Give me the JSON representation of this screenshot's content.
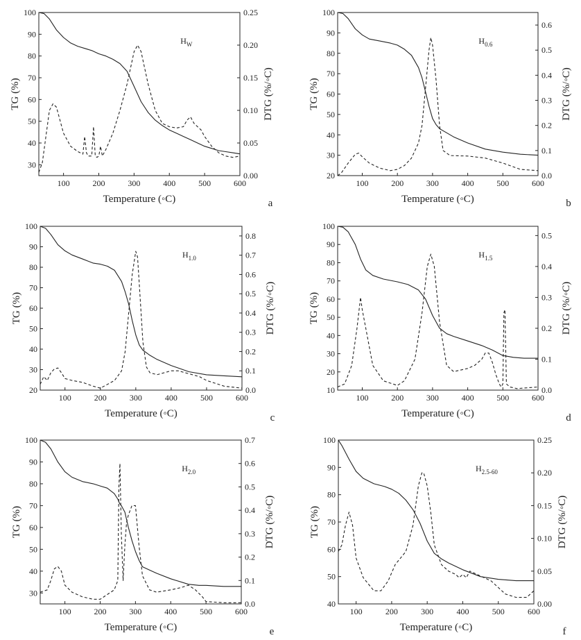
{
  "chart_data": [
    {
      "type": "line",
      "panel_letter": "a",
      "sample_label": {
        "main": "H",
        "sub": "W"
      },
      "xlabel": "Temperature (◦C)",
      "ylabel_left": "TG (%)",
      "ylabel_right": "DTG (%/◦C)",
      "xlim": [
        30,
        600
      ],
      "xticks": [
        100,
        200,
        300,
        400,
        500,
        600
      ],
      "ylim_left": [
        25,
        100
      ],
      "yticks_left": [
        30,
        40,
        50,
        60,
        70,
        80,
        90,
        100
      ],
      "ylim_right": [
        0,
        0.25
      ],
      "yticks_right": [
        "0.00",
        "0.05",
        "0.10",
        "0.15",
        "0.20",
        "0.25"
      ],
      "series": [
        {
          "axis": "left",
          "style": "solid",
          "x": [
            30,
            45,
            60,
            80,
            100,
            120,
            140,
            160,
            180,
            200,
            220,
            240,
            260,
            280,
            300,
            320,
            340,
            360,
            380,
            400,
            420,
            440,
            460,
            480,
            500,
            520,
            540,
            560,
            580,
            600
          ],
          "y": [
            100,
            99.5,
            97,
            92,
            88.5,
            86,
            84.5,
            83.5,
            82.5,
            81,
            80,
            78.5,
            76.5,
            73,
            66,
            59,
            54,
            50.5,
            48,
            46,
            44.5,
            43,
            41.5,
            40,
            38.5,
            37.5,
            36.5,
            36,
            35.5,
            35
          ]
        },
        {
          "axis": "right",
          "style": "dashed",
          "x": [
            30,
            40,
            50,
            60,
            70,
            80,
            90,
            100,
            120,
            140,
            155,
            160,
            165,
            170,
            180,
            185,
            190,
            195,
            200,
            205,
            210,
            215,
            220,
            240,
            260,
            280,
            300,
            310,
            320,
            340,
            360,
            380,
            400,
            420,
            440,
            450,
            460,
            470,
            480,
            490,
            500,
            520,
            540,
            560,
            580,
            600
          ],
          "y": [
            0.005,
            0.02,
            0.06,
            0.1,
            0.11,
            0.105,
            0.085,
            0.065,
            0.045,
            0.037,
            0.033,
            0.06,
            0.035,
            0.03,
            0.03,
            0.075,
            0.03,
            0.028,
            0.03,
            0.045,
            0.03,
            0.035,
            0.04,
            0.065,
            0.1,
            0.14,
            0.19,
            0.2,
            0.19,
            0.14,
            0.1,
            0.08,
            0.075,
            0.073,
            0.075,
            0.085,
            0.09,
            0.08,
            0.075,
            0.07,
            0.06,
            0.045,
            0.035,
            0.03,
            0.028,
            0.03
          ]
        }
      ]
    },
    {
      "type": "line",
      "panel_letter": "b",
      "sample_label": {
        "main": "H",
        "sub": "0.6"
      },
      "xlabel": "Temperature (◦C)",
      "ylabel_left": "TG (%)",
      "ylabel_right": "DTG (%/◦C)",
      "xlim": [
        30,
        600
      ],
      "xticks": [
        100,
        200,
        300,
        400,
        500,
        600
      ],
      "ylim_left": [
        20,
        100
      ],
      "yticks_left": [
        20,
        30,
        40,
        50,
        60,
        70,
        80,
        90,
        100
      ],
      "ylim_right": [
        0,
        0.65
      ],
      "yticks_right": [
        "0.0",
        "0.1",
        "0.2",
        "0.3",
        "0.4",
        "0.5",
        "0.6"
      ],
      "series": [
        {
          "axis": "left",
          "style": "solid",
          "x": [
            30,
            45,
            60,
            80,
            100,
            120,
            150,
            180,
            200,
            220,
            240,
            260,
            270,
            280,
            290,
            300,
            310,
            320,
            340,
            360,
            400,
            450,
            500,
            550,
            600
          ],
          "y": [
            100,
            99.5,
            97,
            92,
            89,
            87,
            86,
            85,
            84,
            82,
            79,
            73,
            68,
            61,
            54,
            48,
            45,
            43,
            41,
            39,
            36,
            33,
            31.5,
            30.5,
            30
          ]
        },
        {
          "axis": "right",
          "style": "dashed",
          "x": [
            30,
            40,
            60,
            80,
            90,
            100,
            120,
            150,
            180,
            200,
            220,
            240,
            260,
            270,
            280,
            290,
            295,
            300,
            310,
            320,
            330,
            350,
            400,
            450,
            500,
            550,
            600
          ],
          "y": [
            0,
            0.01,
            0.05,
            0.085,
            0.09,
            0.075,
            0.05,
            0.03,
            0.02,
            0.025,
            0.04,
            0.07,
            0.13,
            0.2,
            0.35,
            0.5,
            0.55,
            0.52,
            0.38,
            0.2,
            0.1,
            0.08,
            0.078,
            0.07,
            0.05,
            0.025,
            0.02
          ]
        }
      ]
    },
    {
      "type": "line",
      "panel_letter": "c",
      "sample_label": {
        "main": "H",
        "sub": "1.0"
      },
      "xlabel": "Temperature (◦C)",
      "ylabel_left": "TG (%)",
      "ylabel_right": "DTG (%/◦C)",
      "xlim": [
        30,
        600
      ],
      "xticks": [
        100,
        200,
        300,
        400,
        500,
        600
      ],
      "ylim_left": [
        20,
        100
      ],
      "yticks_left": [
        20,
        30,
        40,
        50,
        60,
        70,
        80,
        90,
        100
      ],
      "ylim_right": [
        0,
        0.85
      ],
      "yticks_right": [
        "0.0",
        "0.1",
        "0.2",
        "0.3",
        "0.4",
        "0.5",
        "0.6",
        "0.7",
        "0.8"
      ],
      "series": [
        {
          "axis": "left",
          "style": "solid",
          "x": [
            30,
            45,
            60,
            80,
            100,
            120,
            150,
            180,
            200,
            220,
            240,
            260,
            270,
            280,
            290,
            300,
            310,
            320,
            340,
            360,
            400,
            450,
            500,
            550,
            600
          ],
          "y": [
            100,
            99,
            96,
            91,
            88,
            86,
            84,
            82,
            81.5,
            80.5,
            78.5,
            73,
            68,
            62,
            54,
            47,
            42,
            39.5,
            37,
            35,
            32,
            29,
            27.5,
            27,
            26.5
          ]
        },
        {
          "axis": "right",
          "style": "dashed",
          "x": [
            30,
            40,
            50,
            60,
            70,
            80,
            90,
            100,
            120,
            150,
            180,
            200,
            220,
            240,
            260,
            270,
            280,
            290,
            300,
            305,
            310,
            320,
            330,
            340,
            360,
            380,
            400,
            420,
            440,
            460,
            480,
            500,
            550,
            600
          ],
          "y": [
            0.03,
            0.07,
            0.05,
            0.09,
            0.11,
            0.115,
            0.09,
            0.06,
            0.05,
            0.04,
            0.02,
            0.01,
            0.03,
            0.05,
            0.1,
            0.2,
            0.4,
            0.6,
            0.72,
            0.69,
            0.55,
            0.25,
            0.12,
            0.09,
            0.08,
            0.09,
            0.1,
            0.1,
            0.09,
            0.08,
            0.07,
            0.05,
            0.02,
            0.01
          ]
        }
      ]
    },
    {
      "type": "line",
      "panel_letter": "d",
      "sample_label": {
        "main": "H",
        "sub": "1.5"
      },
      "xlabel": "Temperature (◦C)",
      "ylabel_left": "TG (%)",
      "ylabel_right": "DTG (%/◦C)",
      "xlim": [
        30,
        600
      ],
      "xticks": [
        100,
        200,
        300,
        400,
        500,
        600
      ],
      "ylim_left": [
        10,
        100
      ],
      "yticks_left": [
        10,
        20,
        30,
        40,
        50,
        60,
        70,
        80,
        90,
        100
      ],
      "ylim_right": [
        0,
        0.53
      ],
      "yticks_right": [
        "0.0",
        "0.1",
        "0.2",
        "0.3",
        "0.4",
        "0.5"
      ],
      "series": [
        {
          "axis": "left",
          "style": "solid",
          "x": [
            30,
            45,
            60,
            80,
            95,
            110,
            130,
            160,
            200,
            230,
            260,
            280,
            300,
            320,
            340,
            360,
            400,
            440,
            470,
            500,
            530,
            560,
            600
          ],
          "y": [
            100,
            99.5,
            97,
            90,
            82,
            76,
            73,
            71,
            69.5,
            68,
            65,
            60,
            51,
            44,
            41,
            39.5,
            37,
            34.5,
            32,
            29,
            28,
            27.5,
            27.5
          ]
        },
        {
          "axis": "right",
          "style": "dashed",
          "x": [
            30,
            50,
            70,
            85,
            95,
            100,
            110,
            130,
            160,
            200,
            220,
            250,
            270,
            285,
            295,
            305,
            320,
            340,
            360,
            380,
            400,
            420,
            440,
            450,
            460,
            470,
            480,
            490,
            495,
            500,
            503,
            506,
            510,
            520,
            540,
            600
          ],
          "y": [
            0.01,
            0.02,
            0.08,
            0.2,
            0.3,
            0.26,
            0.2,
            0.08,
            0.03,
            0.015,
            0.03,
            0.1,
            0.25,
            0.4,
            0.44,
            0.4,
            0.22,
            0.08,
            0.06,
            0.065,
            0.07,
            0.08,
            0.1,
            0.12,
            0.12,
            0.09,
            0.05,
            0.02,
            0.01,
            0.02,
            0.25,
            0.26,
            0.02,
            0.01,
            0.005,
            0.01
          ]
        }
      ]
    },
    {
      "type": "line",
      "panel_letter": "e",
      "sample_label": {
        "main": "H",
        "sub": "2.0"
      },
      "xlabel": "Temperature (◦C)",
      "ylabel_left": "TG (%)",
      "ylabel_right": "DTG (%/◦C)",
      "xlim": [
        30,
        600
      ],
      "xticks": [
        100,
        200,
        300,
        400,
        500,
        600
      ],
      "ylim_left": [
        25,
        100
      ],
      "yticks_left": [
        30,
        40,
        50,
        60,
        70,
        80,
        90,
        100
      ],
      "ylim_right": [
        0,
        0.7
      ],
      "yticks_right": [
        "0.0",
        "0.1",
        "0.2",
        "0.3",
        "0.4",
        "0.5",
        "0.6",
        "0.7"
      ],
      "series": [
        {
          "axis": "left",
          "style": "solid",
          "x": [
            30,
            45,
            60,
            80,
            100,
            120,
            150,
            180,
            200,
            220,
            240,
            250,
            255,
            260,
            270,
            280,
            290,
            300,
            310,
            320,
            340,
            360,
            400,
            450,
            480,
            500,
            550,
            600
          ],
          "y": [
            100,
            99,
            96,
            90,
            85.5,
            83,
            81,
            80,
            79,
            78,
            75.5,
            73,
            71,
            70,
            67,
            60,
            54,
            49,
            45,
            42,
            40.5,
            39,
            36.5,
            34,
            33.5,
            33.5,
            33,
            33
          ]
        },
        {
          "axis": "right",
          "style": "dashed",
          "x": [
            30,
            50,
            60,
            70,
            80,
            90,
            100,
            120,
            150,
            180,
            200,
            220,
            240,
            250,
            253,
            256,
            260,
            265,
            270,
            275,
            280,
            290,
            300,
            310,
            320,
            340,
            360,
            400,
            430,
            450,
            470,
            490,
            500,
            550,
            600
          ],
          "y": [
            0.05,
            0.06,
            0.1,
            0.15,
            0.16,
            0.14,
            0.08,
            0.05,
            0.03,
            0.02,
            0.02,
            0.04,
            0.06,
            0.1,
            0.5,
            0.6,
            0.3,
            0.1,
            0.25,
            0.35,
            0.38,
            0.42,
            0.42,
            0.25,
            0.12,
            0.06,
            0.05,
            0.06,
            0.07,
            0.08,
            0.06,
            0.03,
            0.01,
            0.005,
            0.005
          ]
        }
      ]
    },
    {
      "type": "line",
      "panel_letter": "f",
      "sample_label": {
        "main": "H",
        "sub": "2.5-60"
      },
      "xlabel": "Temperature (◦C)",
      "ylabel_left": "TG (%)",
      "ylabel_right": "DTG (%/◦C)",
      "xlim": [
        50,
        600
      ],
      "xticks": [
        100,
        200,
        300,
        400,
        500,
        600
      ],
      "ylim_left": [
        40,
        100
      ],
      "yticks_left": [
        40,
        50,
        60,
        70,
        80,
        90,
        100
      ],
      "ylim_right": [
        0,
        0.25
      ],
      "yticks_right": [
        "0.00",
        "0.05",
        "0.10",
        "0.15",
        "0.20",
        "0.25"
      ],
      "series": [
        {
          "axis": "left",
          "style": "solid",
          "x": [
            50,
            60,
            80,
            100,
            120,
            150,
            180,
            200,
            220,
            240,
            260,
            280,
            300,
            320,
            340,
            360,
            400,
            450,
            500,
            550,
            600
          ],
          "y": [
            100,
            98,
            93,
            88.5,
            86,
            84,
            83,
            82,
            80.5,
            78,
            74.5,
            69.5,
            63,
            58.5,
            56.5,
            55,
            52.5,
            50,
            49,
            48.5,
            48.5
          ]
        },
        {
          "axis": "right",
          "style": "dashed",
          "x": [
            50,
            60,
            70,
            80,
            90,
            100,
            120,
            150,
            170,
            190,
            210,
            240,
            260,
            275,
            285,
            290,
            300,
            310,
            320,
            340,
            360,
            380,
            390,
            400,
            410,
            420,
            440,
            460,
            480,
            500,
            520,
            550,
            580,
            600
          ],
          "y": [
            0.08,
            0.09,
            0.12,
            0.14,
            0.12,
            0.07,
            0.04,
            0.02,
            0.02,
            0.035,
            0.06,
            0.08,
            0.12,
            0.18,
            0.2,
            0.2,
            0.18,
            0.14,
            0.09,
            0.06,
            0.05,
            0.045,
            0.04,
            0.045,
            0.04,
            0.05,
            0.045,
            0.04,
            0.035,
            0.025,
            0.015,
            0.01,
            0.01,
            0.02
          ]
        }
      ]
    }
  ]
}
